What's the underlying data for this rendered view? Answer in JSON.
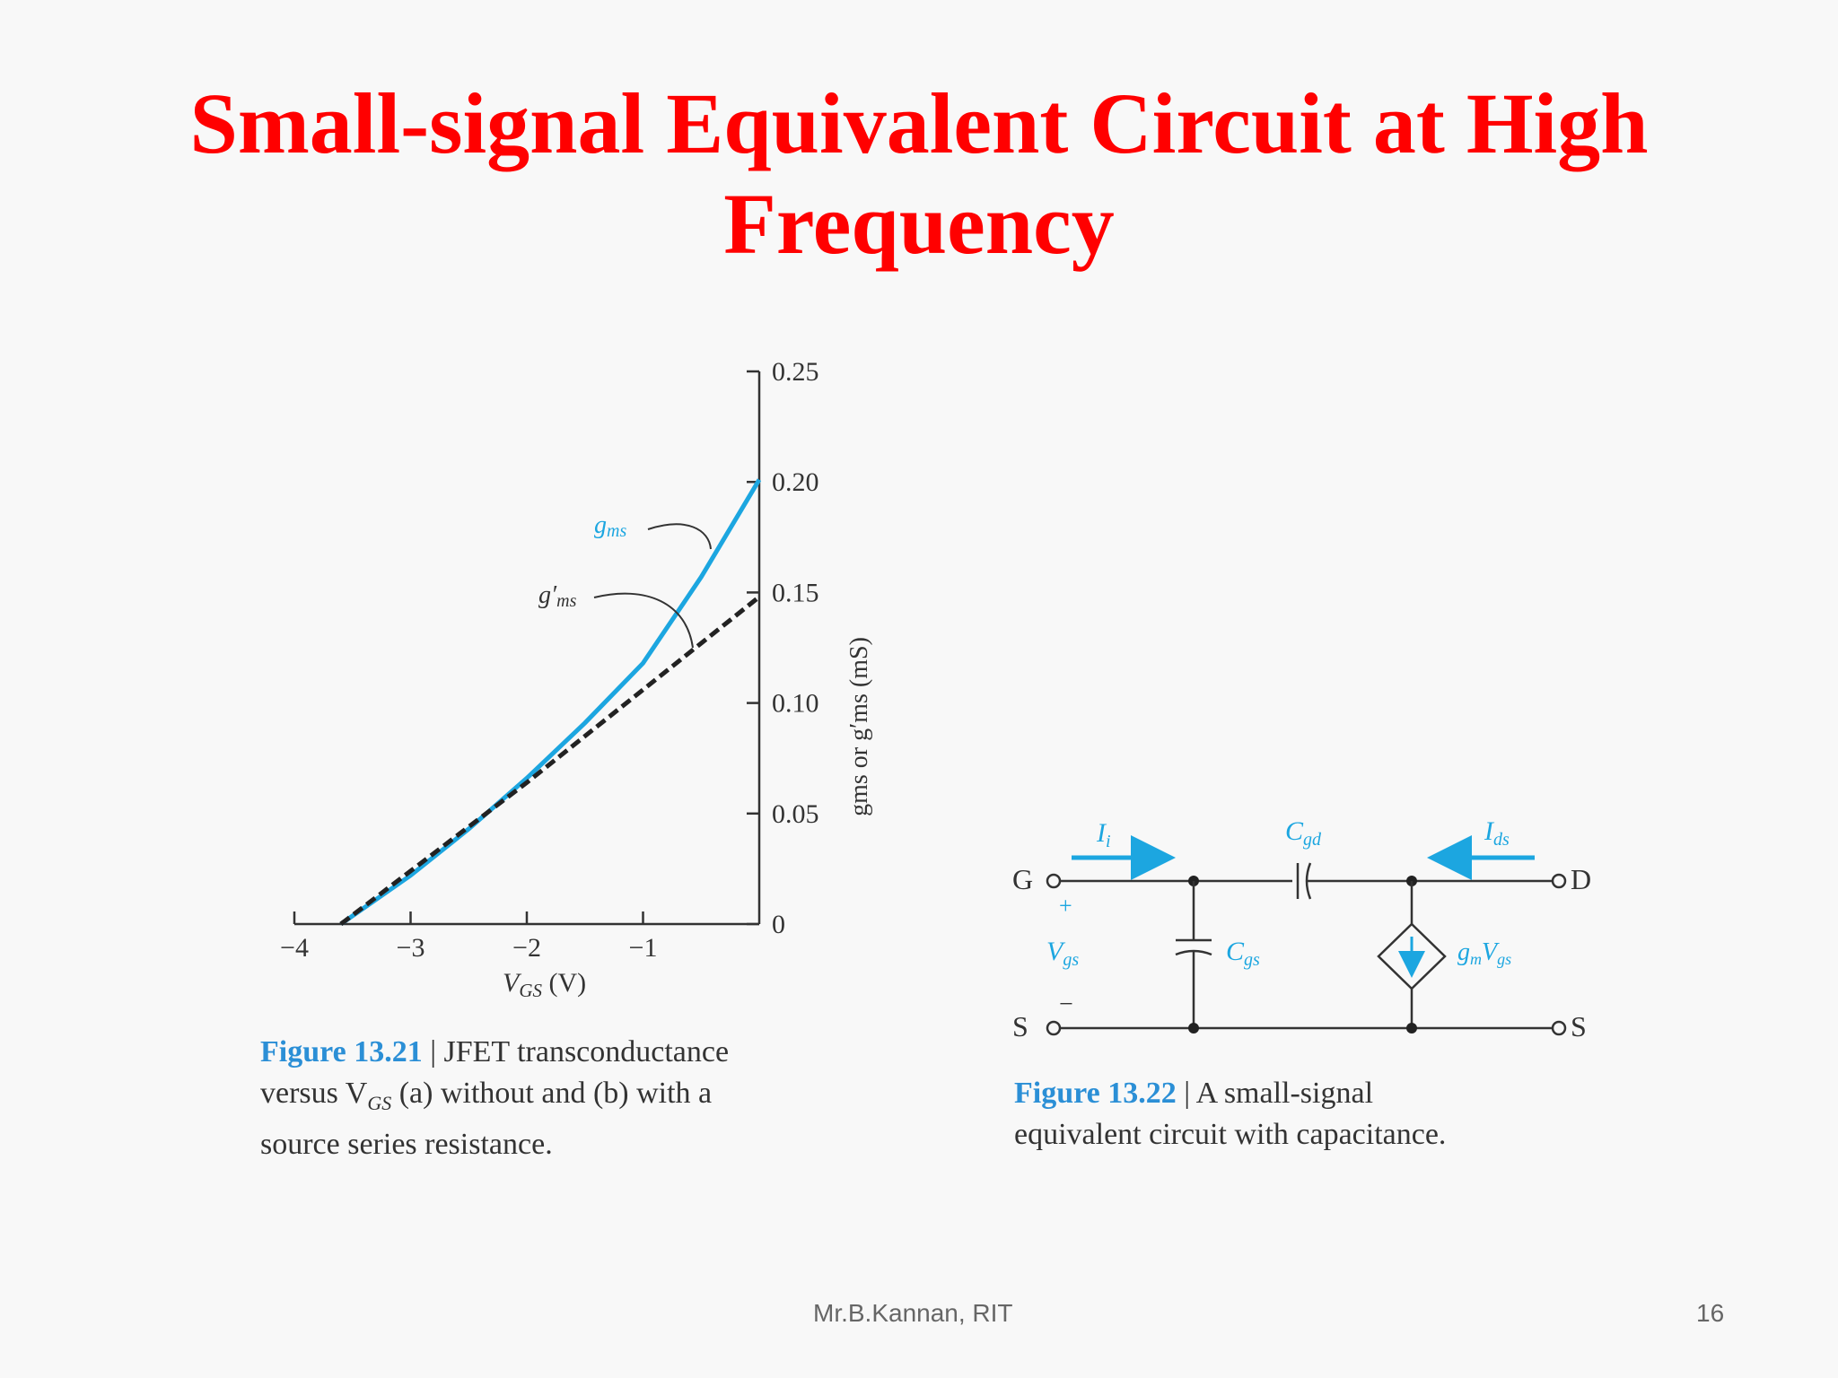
{
  "slide": {
    "title_line1": "Small-signal Equivalent Circuit at High",
    "title_line2": "Frequency",
    "footer_author": "Mr.B.Kannan, RIT",
    "page_number": "16"
  },
  "figure_1321": {
    "caption_number": "Figure 13.21",
    "caption_sep": " | ",
    "caption_line1": "JFET transconductance",
    "caption_line2": "versus V",
    "caption_line2_sub": "GS",
    "caption_line2_rest": " (a) without and (b) with a",
    "caption_line3": "source series resistance.",
    "curve_label_gms": "g",
    "curve_label_gms_sub": "ms",
    "curve_label_gpms": "g′",
    "curve_label_gpms_sub": "ms",
    "x_axis_label": "V",
    "x_axis_label_sub": "GS",
    "x_axis_unit": " (V)",
    "y_axis_label": "gms or g′ms (mS)",
    "colors": {
      "gms": "#1ca6e0",
      "gpms": "#222222"
    }
  },
  "chart_data": {
    "type": "line",
    "x_ticks": [
      "−4",
      "−3",
      "−2",
      "−1"
    ],
    "y_ticks": [
      "0",
      "0.05",
      "0.10",
      "0.15",
      "0.20",
      "0.25"
    ],
    "xlim": [
      -4,
      0
    ],
    "ylim": [
      0,
      0.25
    ],
    "xlabel": "VGS (V)",
    "ylabel": "gms or g′ms (mS)",
    "series": [
      {
        "name": "gms",
        "style": "solid",
        "x": [
          -3.6,
          -3,
          -2.5,
          -2,
          -1.5,
          -1,
          -0.5,
          0
        ],
        "y": [
          0,
          0.022,
          0.043,
          0.066,
          0.091,
          0.118,
          0.157,
          0.201
        ]
      },
      {
        "name": "g′ms",
        "style": "dashed",
        "x": [
          -3.6,
          -3,
          -2,
          -1,
          0
        ],
        "y": [
          0,
          0.024,
          0.064,
          0.106,
          0.148
        ]
      }
    ]
  },
  "figure_1322": {
    "caption_number": "Figure 13.22",
    "caption_sep": " | ",
    "caption_line1": "A small-signal",
    "caption_line2": "equivalent circuit with capacitance.",
    "labels": {
      "G": "G",
      "D": "D",
      "S_left": "S",
      "S_right": "S",
      "Ii": "I",
      "Ii_sub": "i",
      "Ids": "I",
      "Ids_sub": "ds",
      "Cgd": "C",
      "Cgd_sub": "gd",
      "Cgs": "C",
      "Cgs_sub": "gs",
      "Vgs": "V",
      "Vgs_sub": "gs",
      "plus": "+",
      "minus": "−",
      "gmVgs_g": "g",
      "gmVgs_m": "m",
      "gmVgs_V": "V",
      "gmVgs_gs": "gs"
    },
    "colors": {
      "arrows": "#1ca6e0",
      "source_arrow": "#1ca6e0"
    }
  }
}
